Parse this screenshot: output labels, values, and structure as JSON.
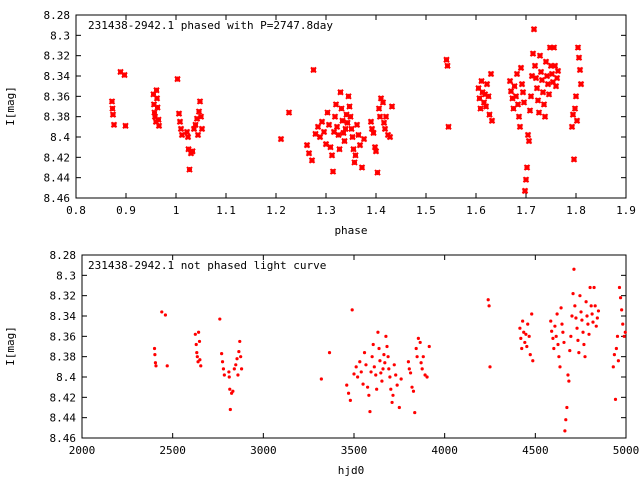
{
  "chart_data": [
    {
      "type": "scatter",
      "title": "231438-2942.1 phased with P=2747.8day",
      "xlabel": "phase",
      "ylabel": "I[mag]",
      "xlim": [
        0.8,
        1.9
      ],
      "ylim": [
        8.46,
        8.28
      ],
      "y_inverted": true,
      "xticks": [
        "0.8",
        "0.9",
        "1",
        "1.1",
        "1.2",
        "1.3",
        "1.4",
        "1.5",
        "1.6",
        "1.7",
        "1.8",
        "1.9"
      ],
      "yticks": [
        "8.28",
        "8.3",
        "8.32",
        "8.34",
        "8.36",
        "8.38",
        "8.4",
        "8.42",
        "8.44",
        "8.46"
      ],
      "marker": "cross",
      "color": "#ff0000",
      "grid": false,
      "points": [
        [
          0.872,
          8.365
        ],
        [
          0.873,
          8.372
        ],
        [
          0.874,
          8.378
        ],
        [
          0.876,
          8.388
        ],
        [
          0.889,
          8.336
        ],
        [
          0.897,
          8.339
        ],
        [
          0.899,
          8.389
        ],
        [
          0.955,
          8.358
        ],
        [
          0.956,
          8.368
        ],
        [
          0.957,
          8.376
        ],
        [
          0.958,
          8.38
        ],
        [
          0.96,
          8.385
        ],
        [
          0.961,
          8.354
        ],
        [
          0.962,
          8.362
        ],
        [
          0.963,
          8.371
        ],
        [
          0.965,
          8.383
        ],
        [
          0.966,
          8.389
        ],
        [
          1.003,
          8.343
        ],
        [
          1.006,
          8.377
        ],
        [
          1.008,
          8.385
        ],
        [
          1.01,
          8.392
        ],
        [
          1.012,
          8.398
        ],
        [
          1.022,
          8.395
        ],
        [
          1.024,
          8.4
        ],
        [
          1.025,
          8.412
        ],
        [
          1.027,
          8.432
        ],
        [
          1.03,
          8.416
        ],
        [
          1.033,
          8.414
        ],
        [
          1.036,
          8.392
        ],
        [
          1.039,
          8.388
        ],
        [
          1.042,
          8.382
        ],
        [
          1.044,
          8.398
        ],
        [
          1.046,
          8.375
        ],
        [
          1.048,
          8.365
        ],
        [
          1.05,
          8.38
        ],
        [
          1.052,
          8.392
        ],
        [
          1.21,
          8.402
        ],
        [
          1.226,
          8.376
        ],
        [
          1.262,
          8.408
        ],
        [
          1.266,
          8.416
        ],
        [
          1.272,
          8.423
        ],
        [
          1.275,
          8.334
        ],
        [
          1.279,
          8.397
        ],
        [
          1.284,
          8.39
        ],
        [
          1.288,
          8.4
        ],
        [
          1.292,
          8.385
        ],
        [
          1.296,
          8.395
        ],
        [
          1.3,
          8.407
        ],
        [
          1.303,
          8.376
        ],
        [
          1.306,
          8.388
        ],
        [
          1.309,
          8.41
        ],
        [
          1.312,
          8.418
        ],
        [
          1.314,
          8.434
        ],
        [
          1.316,
          8.395
        ],
        [
          1.318,
          8.38
        ],
        [
          1.32,
          8.368
        ],
        [
          1.322,
          8.39
        ],
        [
          1.325,
          8.398
        ],
        [
          1.327,
          8.412
        ],
        [
          1.329,
          8.356
        ],
        [
          1.331,
          8.372
        ],
        [
          1.333,
          8.384
        ],
        [
          1.335,
          8.396
        ],
        [
          1.337,
          8.404
        ],
        [
          1.339,
          8.392
        ],
        [
          1.341,
          8.378
        ],
        [
          1.343,
          8.386
        ],
        [
          1.345,
          8.36
        ],
        [
          1.347,
          8.37
        ],
        [
          1.349,
          8.38
        ],
        [
          1.351,
          8.392
        ],
        [
          1.353,
          8.4
        ],
        [
          1.355,
          8.412
        ],
        [
          1.357,
          8.425
        ],
        [
          1.359,
          8.418
        ],
        [
          1.362,
          8.388
        ],
        [
          1.365,
          8.398
        ],
        [
          1.368,
          8.408
        ],
        [
          1.372,
          8.43
        ],
        [
          1.376,
          8.402
        ],
        [
          1.39,
          8.385
        ],
        [
          1.392,
          8.392
        ],
        [
          1.395,
          8.396
        ],
        [
          1.398,
          8.41
        ],
        [
          1.4,
          8.414
        ],
        [
          1.403,
          8.435
        ],
        [
          1.406,
          8.372
        ],
        [
          1.408,
          8.38
        ],
        [
          1.41,
          8.362
        ],
        [
          1.414,
          8.366
        ],
        [
          1.416,
          8.386
        ],
        [
          1.418,
          8.392
        ],
        [
          1.42,
          8.38
        ],
        [
          1.424,
          8.398
        ],
        [
          1.428,
          8.4
        ],
        [
          1.432,
          8.37
        ],
        [
          1.541,
          8.324
        ],
        [
          1.543,
          8.33
        ],
        [
          1.545,
          8.39
        ],
        [
          1.605,
          8.352
        ],
        [
          1.607,
          8.362
        ],
        [
          1.609,
          8.372
        ],
        [
          1.611,
          8.345
        ],
        [
          1.613,
          8.356
        ],
        [
          1.616,
          8.366
        ],
        [
          1.618,
          8.358
        ],
        [
          1.62,
          8.37
        ],
        [
          1.622,
          8.348
        ],
        [
          1.625,
          8.36
        ],
        [
          1.627,
          8.378
        ],
        [
          1.63,
          8.338
        ],
        [
          1.632,
          8.384
        ],
        [
          1.668,
          8.345
        ],
        [
          1.67,
          8.355
        ],
        [
          1.673,
          8.362
        ],
        [
          1.675,
          8.372
        ],
        [
          1.677,
          8.35
        ],
        [
          1.68,
          8.36
        ],
        [
          1.682,
          8.338
        ],
        [
          1.684,
          8.368
        ],
        [
          1.686,
          8.38
        ],
        [
          1.688,
          8.39
        ],
        [
          1.69,
          8.332
        ],
        [
          1.692,
          8.348
        ],
        [
          1.694,
          8.356
        ],
        [
          1.696,
          8.366
        ],
        [
          1.698,
          8.453
        ],
        [
          1.7,
          8.442
        ],
        [
          1.702,
          8.43
        ],
        [
          1.704,
          8.398
        ],
        [
          1.706,
          8.404
        ],
        [
          1.708,
          8.374
        ],
        [
          1.71,
          8.36
        ],
        [
          1.712,
          8.34
        ],
        [
          1.714,
          8.318
        ],
        [
          1.716,
          8.294
        ],
        [
          1.718,
          8.33
        ],
        [
          1.72,
          8.342
        ],
        [
          1.722,
          8.352
        ],
        [
          1.724,
          8.364
        ],
        [
          1.726,
          8.376
        ],
        [
          1.728,
          8.32
        ],
        [
          1.73,
          8.336
        ],
        [
          1.732,
          8.344
        ],
        [
          1.734,
          8.356
        ],
        [
          1.736,
          8.368
        ],
        [
          1.738,
          8.38
        ],
        [
          1.74,
          8.326
        ],
        [
          1.742,
          8.34
        ],
        [
          1.744,
          8.348
        ],
        [
          1.746,
          8.358
        ],
        [
          1.748,
          8.312
        ],
        [
          1.75,
          8.33
        ],
        [
          1.752,
          8.338
        ],
        [
          1.754,
          8.346
        ],
        [
          1.756,
          8.312
        ],
        [
          1.758,
          8.33
        ],
        [
          1.76,
          8.35
        ],
        [
          1.762,
          8.342
        ],
        [
          1.764,
          8.335
        ],
        [
          1.792,
          8.39
        ],
        [
          1.794,
          8.378
        ],
        [
          1.796,
          8.422
        ],
        [
          1.798,
          8.372
        ],
        [
          1.8,
          8.36
        ],
        [
          1.802,
          8.384
        ],
        [
          1.804,
          8.312
        ],
        [
          1.806,
          8.322
        ],
        [
          1.808,
          8.334
        ],
        [
          1.81,
          8.348
        ]
      ]
    },
    {
      "type": "scatter",
      "title": "231438-2942.1 not phased light curve",
      "xlabel": "hjd0",
      "ylabel": "I[mag]",
      "xlim": [
        2000,
        5000
      ],
      "ylim": [
        8.46,
        8.28
      ],
      "y_inverted": true,
      "xticks": [
        "2000",
        "2500",
        "3000",
        "3500",
        "4000",
        "4500",
        "5000"
      ],
      "yticks": [
        "8.28",
        "8.3",
        "8.32",
        "8.34",
        "8.36",
        "8.38",
        "8.4",
        "8.42",
        "8.44",
        "8.46"
      ],
      "marker": "dot",
      "color": "#ff0000",
      "grid": false,
      "points": [
        [
          2400,
          8.372
        ],
        [
          2402,
          8.378
        ],
        [
          2405,
          8.386
        ],
        [
          2408,
          8.389
        ],
        [
          2440,
          8.336
        ],
        [
          2460,
          8.339
        ],
        [
          2470,
          8.389
        ],
        [
          2625,
          8.358
        ],
        [
          2630,
          8.368
        ],
        [
          2633,
          8.376
        ],
        [
          2636,
          8.38
        ],
        [
          2640,
          8.385
        ],
        [
          2643,
          8.356
        ],
        [
          2648,
          8.365
        ],
        [
          2650,
          8.383
        ],
        [
          2655,
          8.389
        ],
        [
          2760,
          8.343
        ],
        [
          2770,
          8.377
        ],
        [
          2775,
          8.385
        ],
        [
          2780,
          8.392
        ],
        [
          2785,
          8.398
        ],
        [
          2810,
          8.395
        ],
        [
          2812,
          8.4
        ],
        [
          2815,
          8.412
        ],
        [
          2818,
          8.432
        ],
        [
          2825,
          8.416
        ],
        [
          2832,
          8.414
        ],
        [
          2840,
          8.392
        ],
        [
          2848,
          8.388
        ],
        [
          2855,
          8.382
        ],
        [
          2860,
          8.398
        ],
        [
          2865,
          8.375
        ],
        [
          2870,
          8.365
        ],
        [
          2875,
          8.38
        ],
        [
          2880,
          8.392
        ],
        [
          3320,
          8.402
        ],
        [
          3365,
          8.376
        ],
        [
          3460,
          8.408
        ],
        [
          3470,
          8.416
        ],
        [
          3480,
          8.423
        ],
        [
          3490,
          8.334
        ],
        [
          3500,
          8.397
        ],
        [
          3512,
          8.39
        ],
        [
          3520,
          8.4
        ],
        [
          3532,
          8.385
        ],
        [
          3540,
          8.395
        ],
        [
          3550,
          8.407
        ],
        [
          3558,
          8.376
        ],
        [
          3566,
          8.388
        ],
        [
          3575,
          8.41
        ],
        [
          3582,
          8.418
        ],
        [
          3588,
          8.434
        ],
        [
          3594,
          8.395
        ],
        [
          3600,
          8.38
        ],
        [
          3606,
          8.368
        ],
        [
          3612,
          8.39
        ],
        [
          3620,
          8.398
        ],
        [
          3625,
          8.412
        ],
        [
          3632,
          8.356
        ],
        [
          3638,
          8.372
        ],
        [
          3643,
          8.384
        ],
        [
          3648,
          8.396
        ],
        [
          3654,
          8.404
        ],
        [
          3660,
          8.392
        ],
        [
          3665,
          8.378
        ],
        [
          3670,
          8.386
        ],
        [
          3676,
          8.36
        ],
        [
          3682,
          8.37
        ],
        [
          3688,
          8.38
        ],
        [
          3692,
          8.392
        ],
        [
          3698,
          8.4
        ],
        [
          3703,
          8.412
        ],
        [
          3710,
          8.425
        ],
        [
          3715,
          8.418
        ],
        [
          3722,
          8.388
        ],
        [
          3730,
          8.398
        ],
        [
          3738,
          8.408
        ],
        [
          3750,
          8.43
        ],
        [
          3760,
          8.402
        ],
        [
          3800,
          8.385
        ],
        [
          3805,
          8.392
        ],
        [
          3812,
          8.396
        ],
        [
          3820,
          8.41
        ],
        [
          3828,
          8.414
        ],
        [
          3835,
          8.435
        ],
        [
          3843,
          8.372
        ],
        [
          3848,
          8.38
        ],
        [
          3855,
          8.362
        ],
        [
          3865,
          8.366
        ],
        [
          3870,
          8.386
        ],
        [
          3876,
          8.392
        ],
        [
          3882,
          8.38
        ],
        [
          3892,
          8.398
        ],
        [
          3903,
          8.4
        ],
        [
          3915,
          8.37
        ],
        [
          4240,
          8.324
        ],
        [
          4245,
          8.33
        ],
        [
          4250,
          8.39
        ],
        [
          4415,
          8.352
        ],
        [
          4420,
          8.362
        ],
        [
          4425,
          8.372
        ],
        [
          4430,
          8.345
        ],
        [
          4436,
          8.356
        ],
        [
          4442,
          8.366
        ],
        [
          4448,
          8.358
        ],
        [
          4453,
          8.37
        ],
        [
          4458,
          8.348
        ],
        [
          4466,
          8.36
        ],
        [
          4472,
          8.378
        ],
        [
          4480,
          8.338
        ],
        [
          4486,
          8.384
        ],
        [
          4585,
          8.345
        ],
        [
          4590,
          8.355
        ],
        [
          4597,
          8.362
        ],
        [
          4602,
          8.372
        ],
        [
          4608,
          8.35
        ],
        [
          4615,
          8.36
        ],
        [
          4620,
          8.338
        ],
        [
          4625,
          8.368
        ],
        [
          4630,
          8.38
        ],
        [
          4636,
          8.39
        ],
        [
          4642,
          8.332
        ],
        [
          4647,
          8.348
        ],
        [
          4652,
          8.356
        ],
        [
          4658,
          8.366
        ],
        [
          4663,
          8.453
        ],
        [
          4668,
          8.442
        ],
        [
          4674,
          8.43
        ],
        [
          4680,
          8.398
        ],
        [
          4685,
          8.404
        ],
        [
          4690,
          8.374
        ],
        [
          4696,
          8.36
        ],
        [
          4702,
          8.34
        ],
        [
          4708,
          8.318
        ],
        [
          4713,
          8.294
        ],
        [
          4718,
          8.33
        ],
        [
          4724,
          8.342
        ],
        [
          4730,
          8.352
        ],
        [
          4735,
          8.364
        ],
        [
          4740,
          8.376
        ],
        [
          4746,
          8.32
        ],
        [
          4752,
          8.336
        ],
        [
          4757,
          8.344
        ],
        [
          4763,
          8.356
        ],
        [
          4768,
          8.368
        ],
        [
          4774,
          8.38
        ],
        [
          4780,
          8.326
        ],
        [
          4785,
          8.34
        ],
        [
          4790,
          8.348
        ],
        [
          4796,
          8.358
        ],
        [
          4802,
          8.312
        ],
        [
          4808,
          8.33
        ],
        [
          4813,
          8.338
        ],
        [
          4818,
          8.346
        ],
        [
          4824,
          8.312
        ],
        [
          4830,
          8.33
        ],
        [
          4836,
          8.35
        ],
        [
          4842,
          8.342
        ],
        [
          4848,
          8.335
        ],
        [
          4930,
          8.39
        ],
        [
          4936,
          8.378
        ],
        [
          4942,
          8.422
        ],
        [
          4947,
          8.372
        ],
        [
          4953,
          8.36
        ],
        [
          4958,
          8.384
        ],
        [
          4964,
          8.312
        ],
        [
          4970,
          8.322
        ],
        [
          4976,
          8.334
        ],
        [
          4982,
          8.348
        ],
        [
          4990,
          8.36
        ],
        [
          4996,
          8.356
        ]
      ]
    }
  ]
}
